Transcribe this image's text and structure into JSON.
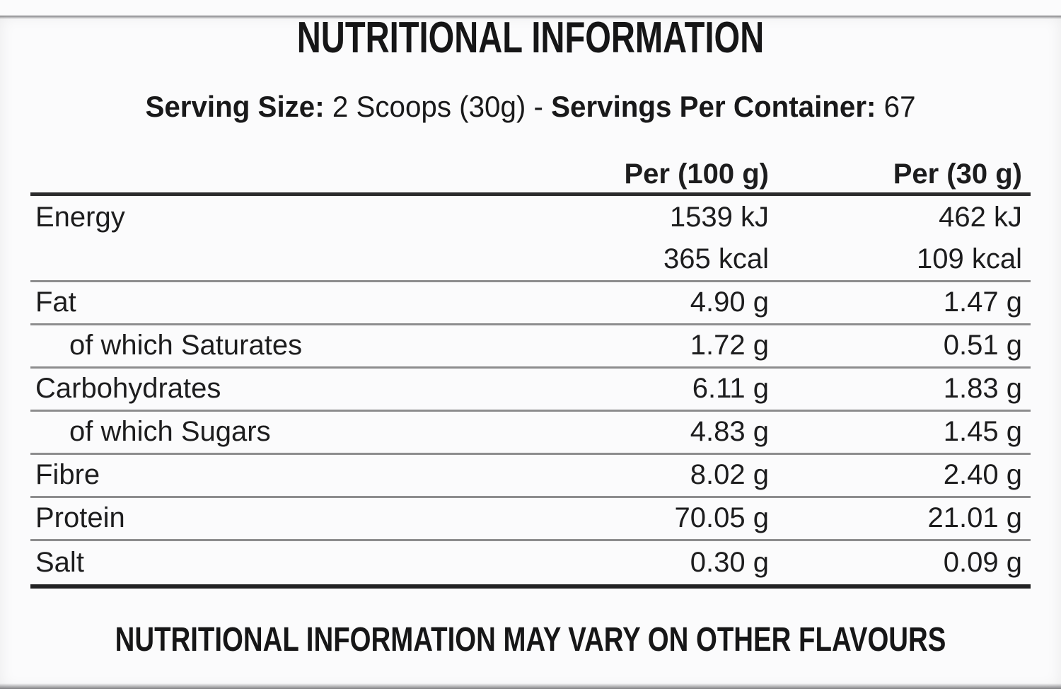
{
  "title": "NUTRITIONAL INFORMATION",
  "serving_line": [
    {
      "text": "Serving Size:",
      "bold": true
    },
    {
      "text": " 2 Scoops (30g) - ",
      "bold": false
    },
    {
      "text": "Servings Per Container:",
      "bold": true
    },
    {
      "text": " 67",
      "bold": false
    }
  ],
  "table": {
    "columns": [
      "Per (100 g)",
      "Per (30 g)"
    ],
    "rows": [
      {
        "label": "Energy",
        "per100": "1539 kJ",
        "per30": "462 kJ",
        "indent": false,
        "divider": "none"
      },
      {
        "label": "",
        "per100": "365 kcal",
        "per30": "109 kcal",
        "indent": false,
        "divider": "gray"
      },
      {
        "label": "Fat",
        "per100": "4.90 g",
        "per30": "1.47 g",
        "indent": false,
        "divider": "gray"
      },
      {
        "label": "of which Saturates",
        "per100": "1.72 g",
        "per30": "0.51 g",
        "indent": true,
        "divider": "gray"
      },
      {
        "label": "Carbohydrates",
        "per100": "6.11 g",
        "per30": "1.83 g",
        "indent": false,
        "divider": "gray"
      },
      {
        "label": "of which Sugars",
        "per100": "4.83 g",
        "per30": "1.45 g",
        "indent": true,
        "divider": "gray"
      },
      {
        "label": "Fibre",
        "per100": "8.02 g",
        "per30": "2.40 g",
        "indent": false,
        "divider": "gray"
      },
      {
        "label": "Protein",
        "per100": "70.05 g",
        "per30": "21.01 g",
        "indent": false,
        "divider": "gray"
      },
      {
        "label": "Salt",
        "per100": "0.30 g",
        "per30": "0.09 g",
        "indent": false,
        "divider": "thick"
      }
    ]
  },
  "footer": "NUTRITIONAL INFORMATION MAY VARY ON OTHER FLAVOURS",
  "colors": {
    "text": "#1d1d1e",
    "divider_gray": "#8d8d8e",
    "divider_dark": "#222223",
    "background": "#fbfbfc"
  }
}
